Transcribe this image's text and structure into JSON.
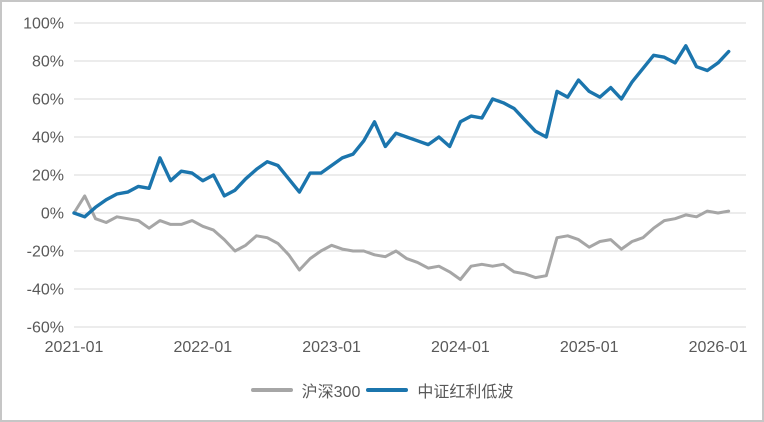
{
  "chart_data": {
    "type": "line",
    "title": "",
    "x_unit": "month",
    "x": [
      "2021-01",
      "2021-02",
      "2021-03",
      "2021-04",
      "2021-05",
      "2021-06",
      "2021-07",
      "2021-08",
      "2021-09",
      "2021-10",
      "2021-11",
      "2021-12",
      "2022-01",
      "2022-02",
      "2022-03",
      "2022-04",
      "2022-05",
      "2022-06",
      "2022-07",
      "2022-08",
      "2022-09",
      "2022-10",
      "2022-11",
      "2022-12",
      "2023-01",
      "2023-02",
      "2023-03",
      "2023-04",
      "2023-05",
      "2023-06",
      "2023-07",
      "2023-08",
      "2023-09",
      "2023-10",
      "2023-11",
      "2023-12",
      "2024-01",
      "2024-02",
      "2024-03",
      "2024-04",
      "2024-05",
      "2024-06",
      "2024-07",
      "2024-08",
      "2024-09",
      "2024-10",
      "2024-11",
      "2024-12",
      "2025-01",
      "2025-02",
      "2025-03",
      "2025-04",
      "2025-05",
      "2025-06",
      "2025-07",
      "2025-08",
      "2025-09",
      "2025-10",
      "2025-11",
      "2025-12",
      "2026-01",
      "2026-02"
    ],
    "series": [
      {
        "id": "hs300",
        "name": "沪深300",
        "color": "#a6a6a6",
        "width": 3,
        "values": [
          0,
          9,
          -3,
          -5,
          -2,
          -3,
          -4,
          -8,
          -4,
          -6,
          -6,
          -4,
          -7,
          -9,
          -14,
          -20,
          -17,
          -12,
          -13,
          -16,
          -22,
          -30,
          -24,
          -20,
          -17,
          -19,
          -20,
          -20,
          -22,
          -23,
          -20,
          -24,
          -26,
          -29,
          -28,
          -31,
          -35,
          -28,
          -27,
          -28,
          -27,
          -31,
          -32,
          -34,
          -33,
          -13,
          -12,
          -14,
          -18,
          -15,
          -14,
          -19,
          -15,
          -13,
          -8,
          -4,
          -3,
          -1,
          -2,
          1,
          0,
          1
        ]
      },
      {
        "id": "zz-hongli-dibo",
        "name": "中证红利低波",
        "color": "#1b75ad",
        "width": 3.4,
        "values": [
          0,
          -2,
          3,
          7,
          10,
          11,
          14,
          13,
          29,
          17,
          22,
          21,
          17,
          20,
          9,
          12,
          18,
          23,
          27,
          25,
          18,
          11,
          21,
          21,
          25,
          29,
          31,
          38,
          48,
          35,
          42,
          40,
          38,
          36,
          40,
          35,
          48,
          51,
          50,
          60,
          58,
          55,
          49,
          43,
          40,
          64,
          61,
          70,
          64,
          61,
          66,
          60,
          69,
          76,
          83,
          82,
          79,
          88,
          77,
          75,
          79,
          85
        ]
      }
    ],
    "x_ticks": [
      {
        "month_index": 0,
        "label": "2021-01"
      },
      {
        "month_index": 12,
        "label": "2022-01"
      },
      {
        "month_index": 24,
        "label": "2023-01"
      },
      {
        "month_index": 36,
        "label": "2024-01"
      },
      {
        "month_index": 48,
        "label": "2025-01"
      },
      {
        "month_index": 60,
        "label": "2026-01"
      }
    ],
    "y_ticks": [
      {
        "value": 100,
        "label": "100%"
      },
      {
        "value": 80,
        "label": "80%"
      },
      {
        "value": 60,
        "label": "60%"
      },
      {
        "value": 40,
        "label": "40%"
      },
      {
        "value": 20,
        "label": "20%"
      },
      {
        "value": 0,
        "label": "0%"
      },
      {
        "value": -20,
        "label": "-20%"
      },
      {
        "value": -40,
        "label": "-40%"
      },
      {
        "value": -60,
        "label": "-60%"
      }
    ],
    "ylim": [
      -60,
      100
    ],
    "grid": "horizontal",
    "grid_color": "#d9d9d9",
    "axis_text_color": "#595959",
    "legend_position": "bottom-center"
  }
}
